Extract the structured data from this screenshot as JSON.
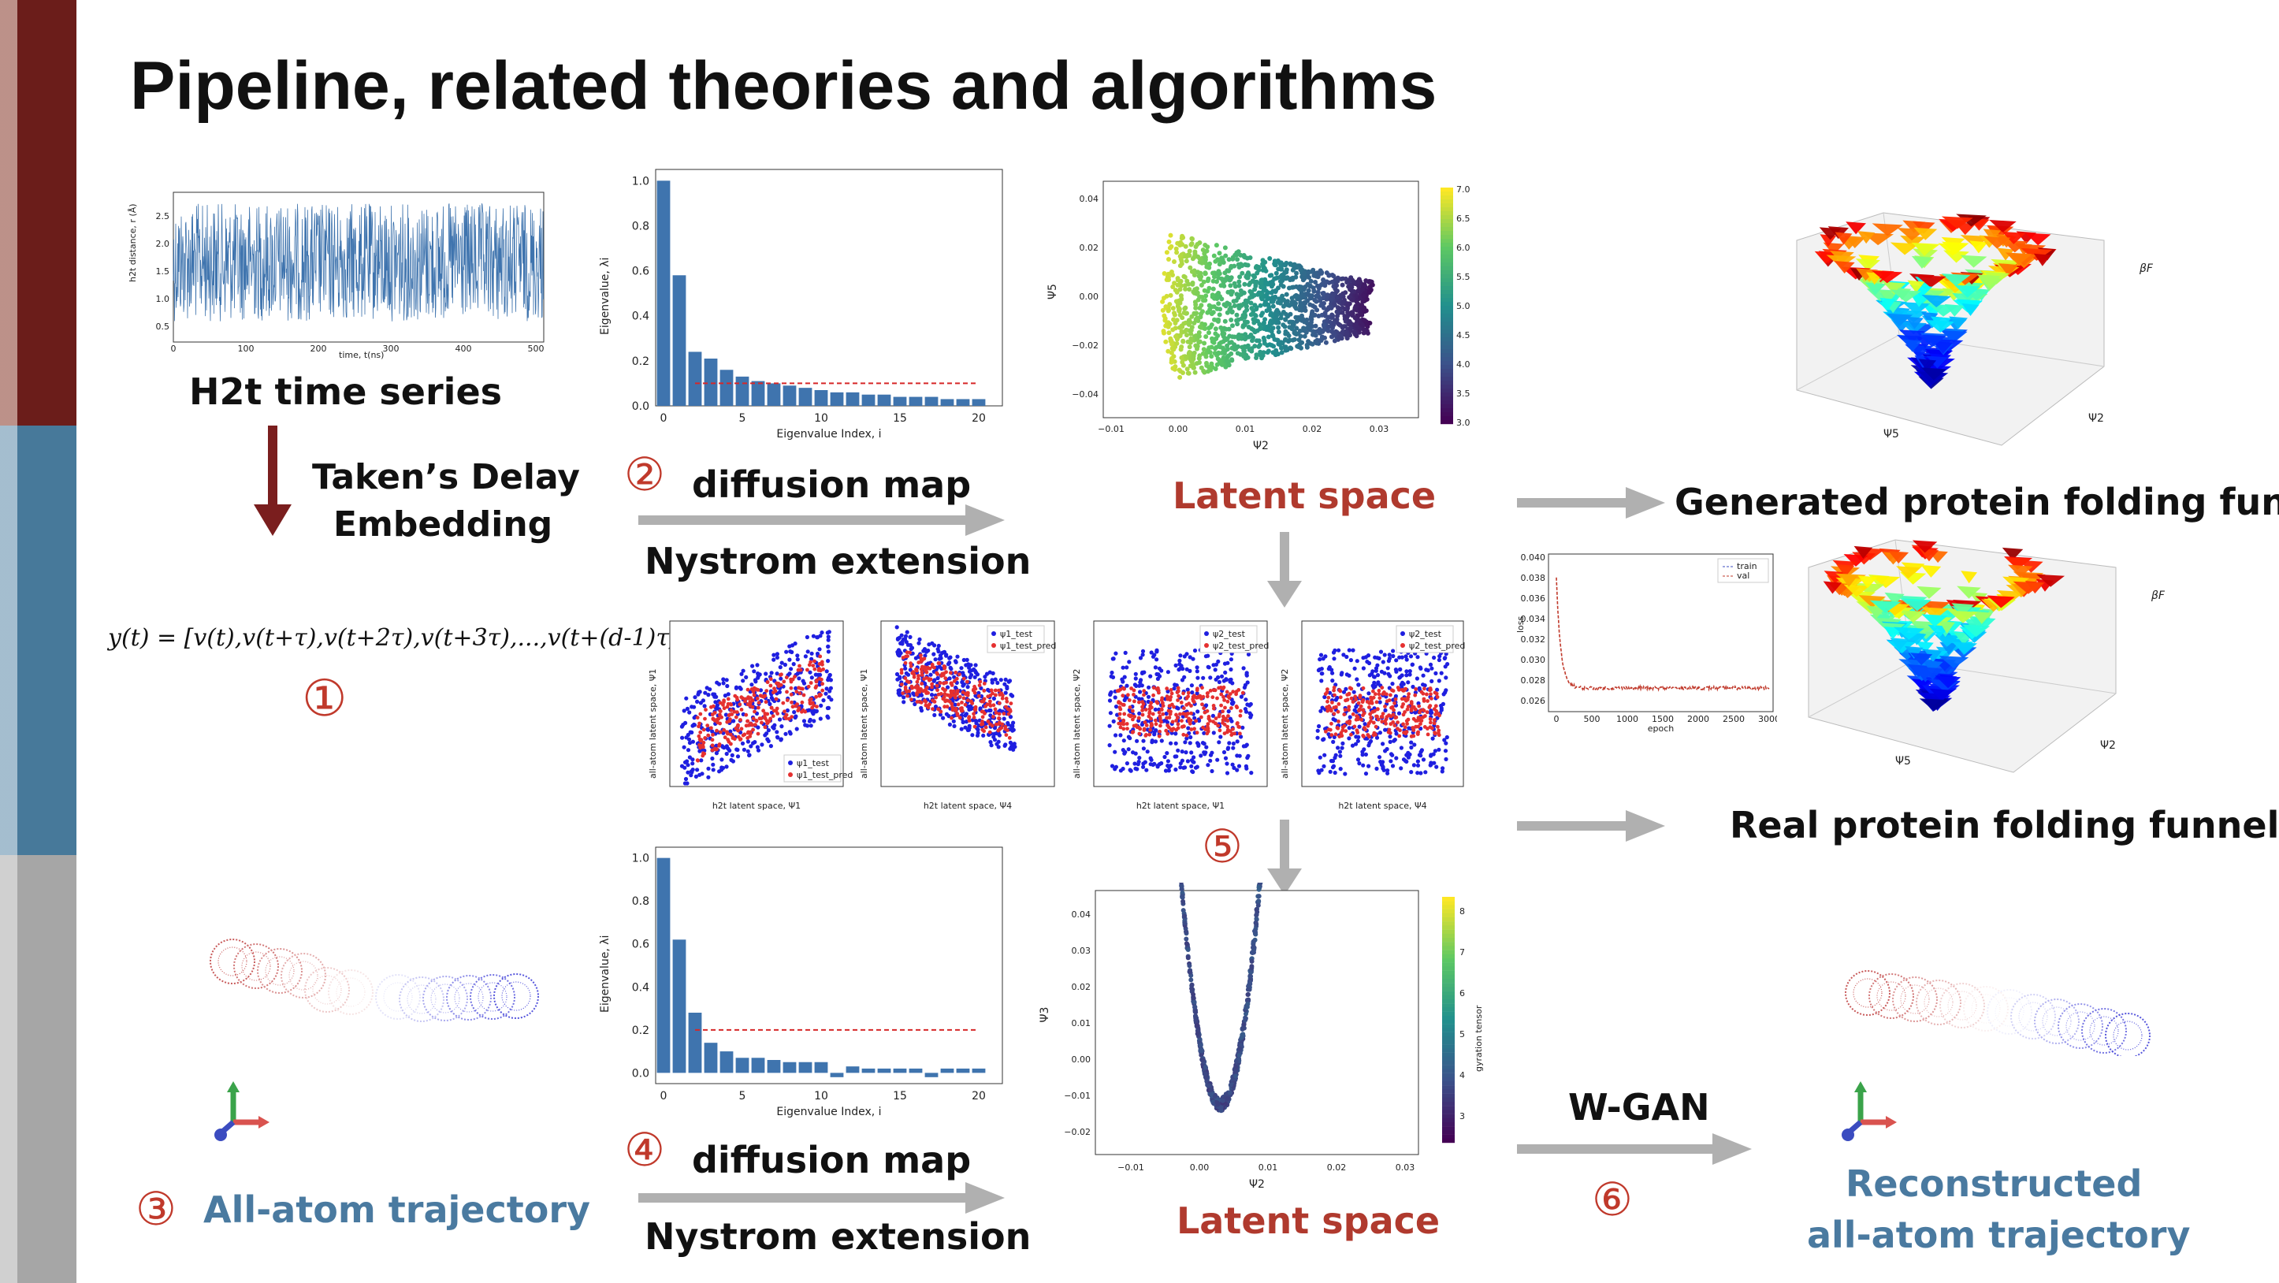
{
  "title": "Pipeline, related theories and algorithms",
  "labels": {
    "h2t_series": "H2t time series",
    "takens_1": "Taken’s Delay",
    "takens_2": "Embedding",
    "formula": "y(t) = [v(t),v(t+τ),v(t+2τ),v(t+3τ),...,v(t+(d-1)τ)]",
    "step1": "①",
    "step2": "②",
    "step3": "③",
    "step4": "④",
    "step5": "⑤",
    "step6": "⑥",
    "diffusion_map": "diffusion map",
    "nystrom_top": "Nystrom extension",
    "nystrom_bottom": "Nystrom extension",
    "latent_top": "Latent space",
    "latent_bottom": "Latent space",
    "generated_funnels": "Generated protein folding funnels",
    "real_funnels": "Real protein folding funnels",
    "all_atom": "All-atom trajectory",
    "wgan": "W-GAN",
    "reconstructed_1": "Reconstructed",
    "reconstructed_2": "all-atom trajectory"
  },
  "colors": {
    "sidebar_top": "#6b1d1a",
    "sidebar_mid": "#47799a",
    "sidebar_bot": "#a6a6a6",
    "accent_red": "#c0392b",
    "blue_text": "#4a7aa0",
    "latent_red": "#b03a2e",
    "bar_blue": "#3f74ae",
    "arrow_gray": "#b0b0b0"
  },
  "timeseries": {
    "ylabel": "h2t distance, r (Å)",
    "xlabel": "time, t(ns)",
    "xticks": [
      "0",
      "100",
      "200",
      "300",
      "400",
      "500"
    ],
    "yticks": [
      "0.5",
      "1.0",
      "1.5",
      "2.0",
      "2.5"
    ]
  },
  "eig_top": {
    "xlabel": "Eigenvalue Index, i",
    "ylabel": "Eigenvalue, λi",
    "xticks": [
      "0",
      "5",
      "10",
      "15",
      "20"
    ],
    "yticks": [
      "0.0",
      "0.2",
      "0.4",
      "0.6",
      "0.8",
      "1.0"
    ],
    "values": [
      1.0,
      0.58,
      0.24,
      0.21,
      0.16,
      0.13,
      0.11,
      0.1,
      0.09,
      0.08,
      0.07,
      0.06,
      0.06,
      0.05,
      0.05,
      0.04,
      0.04,
      0.04,
      0.03,
      0.03,
      0.03
    ],
    "threshold": 0.1
  },
  "eig_bottom": {
    "xlabel": "Eigenvalue Index, i",
    "ylabel": "Eigenvalue, λi",
    "xticks": [
      "0",
      "5",
      "10",
      "15",
      "20"
    ],
    "yticks": [
      "0.0",
      "0.2",
      "0.4",
      "0.6",
      "0.8",
      "1.0"
    ],
    "values": [
      1.0,
      0.62,
      0.28,
      0.14,
      0.1,
      0.07,
      0.07,
      0.06,
      0.05,
      0.05,
      0.05,
      -0.02,
      0.03,
      0.02,
      0.02,
      0.02,
      0.02,
      -0.02,
      0.02,
      0.02,
      0.02
    ],
    "threshold": 0.2
  },
  "latent_top_plot": {
    "xlabel": "Ψ2",
    "ylabel": "Ψ5",
    "xticks": [
      "−0.01",
      "0.00",
      "0.01",
      "0.02",
      "0.03"
    ],
    "yticks": [
      "0.04",
      "0.02",
      "0.00",
      "−0.02",
      "−0.04"
    ],
    "cbar": [
      "7.0",
      "6.5",
      "6.0",
      "5.5",
      "5.0",
      "4.5",
      "4.0",
      "3.5",
      "3.0"
    ]
  },
  "latent_bottom_plot": {
    "xlabel": "Ψ2",
    "ylabel": "Ψ3",
    "xticks": [
      "−0.01",
      "0.00",
      "0.01",
      "0.02",
      "0.03"
    ],
    "yticks": [
      "0.04",
      "0.03",
      "0.02",
      "0.01",
      "0.00",
      "−0.01",
      "−0.02"
    ],
    "cbar": [
      "8",
      "7",
      "6",
      "5",
      "4",
      "3"
    ],
    "cbar_label": "gyration tensor"
  },
  "pred_plots": [
    {
      "ylabel": "all-atom latent space, Ψ1",
      "xlabel": "h2t latent space, Ψ1",
      "legend": [
        "ψ1_test",
        "ψ1_test_pred"
      ]
    },
    {
      "ylabel": "all-atom latent space, Ψ1",
      "xlabel": "h2t latent space, Ψ4",
      "legend": [
        "ψ1_test",
        "ψ1_test_pred"
      ]
    },
    {
      "ylabel": "all-atom latent space, Ψ2",
      "xlabel": "h2t latent space, Ψ1",
      "legend": [
        "ψ2_test",
        "ψ2_test_pred"
      ]
    },
    {
      "ylabel": "all-atom latent space, Ψ2",
      "xlabel": "h2t latent space, Ψ4",
      "legend": [
        "ψ2_test",
        "ψ2_test_pred"
      ]
    }
  ],
  "loss_plot": {
    "xlabel": "epoch",
    "ylabel": "loss",
    "legend": [
      "train",
      "val"
    ],
    "xticks": [
      "0",
      "500",
      "1000",
      "1500",
      "2000",
      "2500",
      "3000"
    ],
    "yticks": [
      "0.040",
      "0.038",
      "0.036",
      "0.034",
      "0.032",
      "0.030",
      "0.028",
      "0.026"
    ]
  },
  "funnel_top": {
    "zlabel": "βF",
    "xlabel": "Ψ5",
    "ylabel": "Ψ2"
  },
  "funnel_bottom": {
    "zlabel": "βF",
    "xlabel": "Ψ5",
    "ylabel": "Ψ2"
  }
}
